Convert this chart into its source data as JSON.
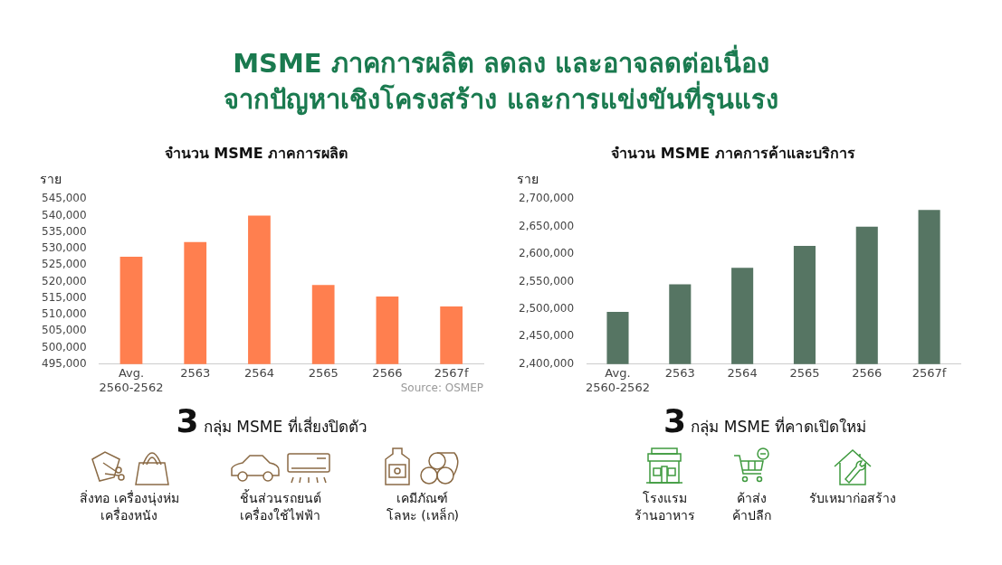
{
  "chart_data": [
    {
      "type": "other",
      "title": "MSME ภาคการผลิต ลดลง และอาจลดต่อเนื่อง\nจากปัญหาเชิงโครงสร้าง และการแข่งขันที่รุนแรง",
      "color": "#1a7a4f"
    },
    {
      "type": "bar",
      "title": "จำนวน MSME ภาคการผลิต",
      "ylabel": "ราย",
      "categories": [
        "Avg. 2560-2562",
        "2563",
        "2564",
        "2565",
        "2566",
        "2567f"
      ],
      "values": [
        527500,
        532000,
        540000,
        519000,
        515500,
        512500
      ],
      "color": "#ff7f4f",
      "ylim": [
        495000,
        545000
      ],
      "yticks": [
        {
          "value": 495000,
          "label": "495,000"
        },
        {
          "value": 500000,
          "label": "500,000"
        },
        {
          "value": 505000,
          "label": "505,000"
        },
        {
          "value": 510000,
          "label": "510,000"
        },
        {
          "value": 515000,
          "label": "515,000"
        },
        {
          "value": 520000,
          "label": "520,000"
        },
        {
          "value": 525000,
          "label": "525,000"
        },
        {
          "value": 530000,
          "label": "530,000"
        },
        {
          "value": 535000,
          "label": "535,000"
        },
        {
          "value": 540000,
          "label": "540,000"
        },
        {
          "value": 545000,
          "label": "545,000"
        }
      ],
      "legend": false,
      "annotations": [
        "Source: OSMEP"
      ]
    },
    {
      "type": "bar",
      "title": "จำนวน MSME ภาคการค้าและบริการ",
      "ylabel": "ราย",
      "categories": [
        "Avg. 2560-2562",
        "2563",
        "2564",
        "2565",
        "2566",
        "2567f"
      ],
      "values": [
        2495000,
        2545000,
        2575000,
        2615000,
        2650000,
        2680000
      ],
      "color": "#567563",
      "ylim": [
        2400000,
        2700000
      ],
      "yticks": [
        {
          "value": 2400000,
          "label": "2,400,000"
        },
        {
          "value": 2450000,
          "label": "2,450,000"
        },
        {
          "value": 2500000,
          "label": "2,500,000"
        },
        {
          "value": 2550000,
          "label": "2,550,000"
        },
        {
          "value": 2600000,
          "label": "2,600,000"
        },
        {
          "value": 2650000,
          "label": "2,650,000"
        },
        {
          "value": 2700000,
          "label": "2,700,000"
        }
      ],
      "legend": false
    },
    {
      "type": "other",
      "title": "3 กลุ่ม MSME ที่เสี่ยงปิดตัว",
      "annotations": [
        "สิ่งทอ เครื่องนุ่งห่ม\nเครื่องหนัง",
        "ชิ้นส่วนรถยนต์\nเครื่องใช้ไฟฟ้า",
        "เคมีภัณฑ์\nโลหะ (เหล็ก)"
      ]
    },
    {
      "type": "other",
      "title": "3 กลุ่ม MSME ที่คาดเปิดใหม่",
      "annotations": [
        "โรงแรม\nร้านอาหาร",
        "ค้าส่ง\nค้าปลีก",
        "รับเหมาก่อสร้าง"
      ]
    }
  ]
}
